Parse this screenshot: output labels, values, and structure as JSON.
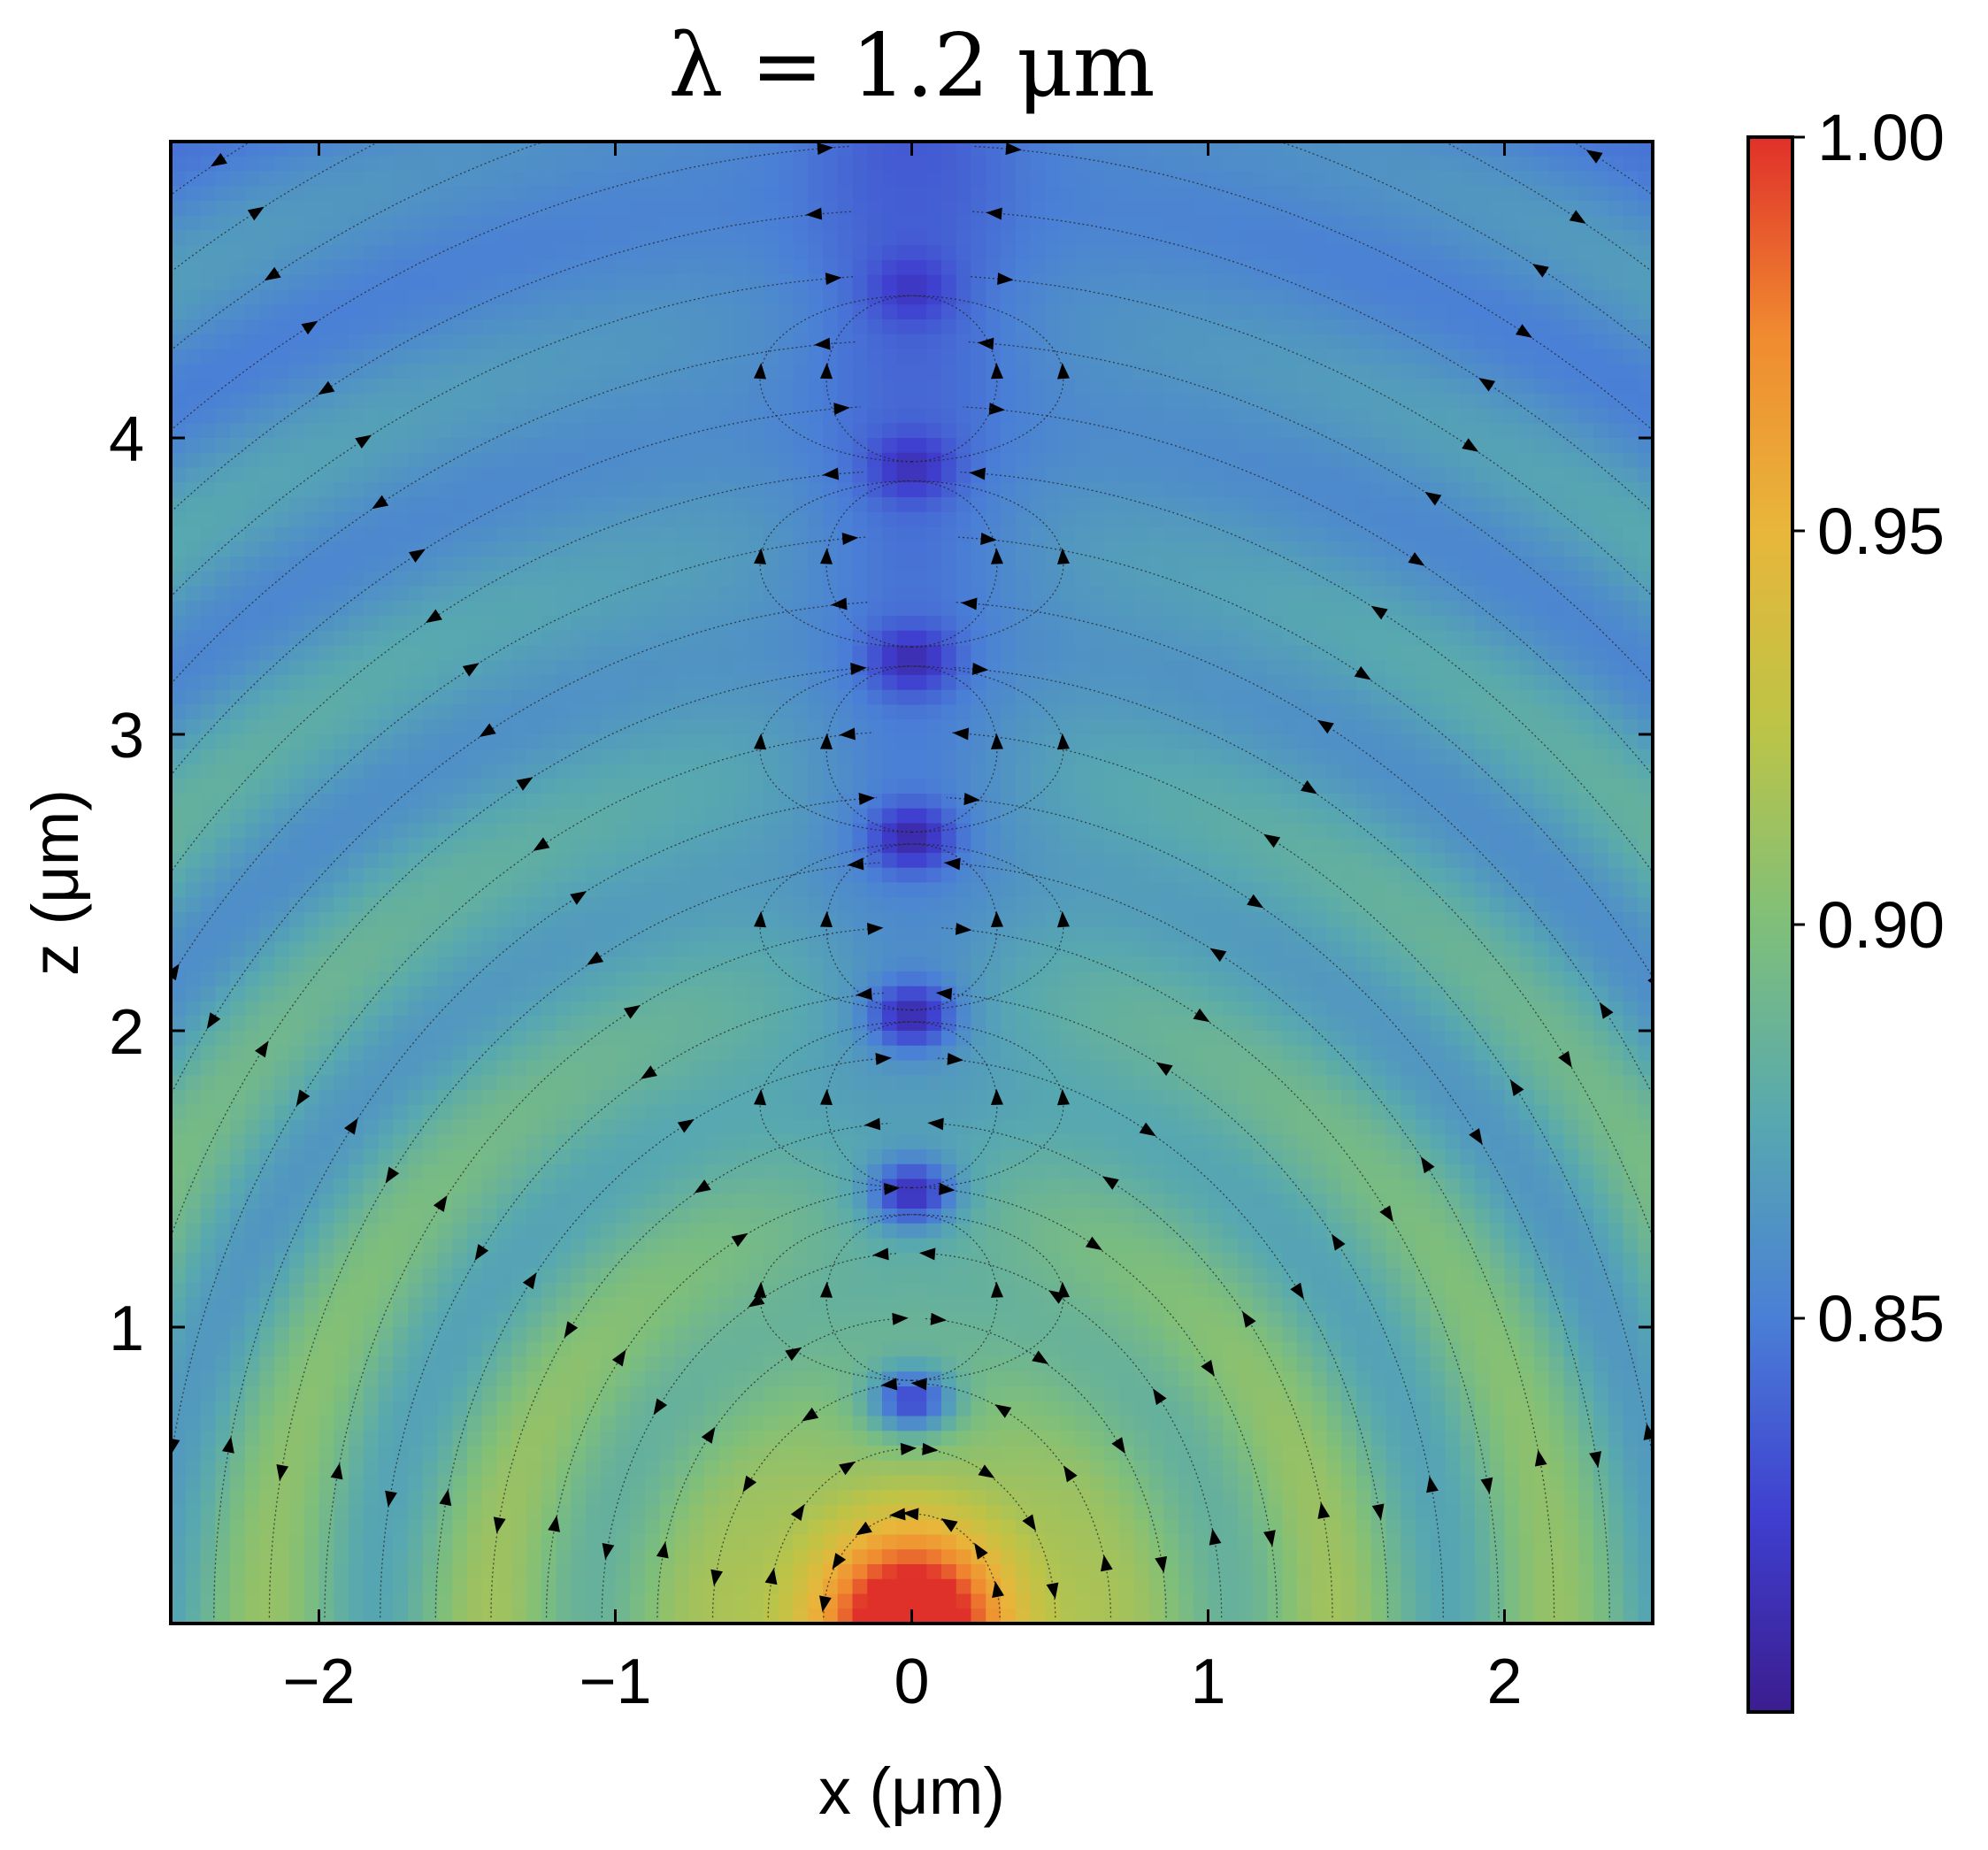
{
  "chart_data": {
    "type": "heatmap",
    "title": "λ = 1.2 μm",
    "xlabel": "x (μm)",
    "ylabel": "z (μm)",
    "xlim": [
      -2.5,
      2.5
    ],
    "ylim": [
      0,
      5
    ],
    "x_ticks": [
      {
        "value": -2,
        "label": "−2"
      },
      {
        "value": -1,
        "label": "−1"
      },
      {
        "value": 0,
        "label": "0"
      },
      {
        "value": 1,
        "label": "1"
      },
      {
        "value": 2,
        "label": "2"
      }
    ],
    "y_ticks": [
      {
        "value": 1,
        "label": "1"
      },
      {
        "value": 2,
        "label": "2"
      },
      {
        "value": 3,
        "label": "3"
      },
      {
        "value": 4,
        "label": "4"
      }
    ],
    "colorbar": {
      "range": [
        0.8,
        1.0
      ],
      "ticks": [
        {
          "value": 0.85,
          "label": "0.85"
        },
        {
          "value": 0.9,
          "label": "0.90"
        },
        {
          "value": 0.95,
          "label": "0.95"
        },
        {
          "value": 1.0,
          "label": "1.00"
        }
      ],
      "colormap": [
        "#3b1d8f",
        "#3f3fd0",
        "#4a7fd6",
        "#57a8b0",
        "#7fbf7a",
        "#bcc447",
        "#e8b63a",
        "#f08a30",
        "#e0302a"
      ]
    },
    "field_minima_x0_z": [
      4.5,
      3.9,
      3.25,
      2.65,
      2.05,
      1.45,
      0.75
    ],
    "field_maximum": {
      "x": 0,
      "z": 0,
      "value": 1.0
    },
    "overlay": "streamlines with arrowheads"
  }
}
